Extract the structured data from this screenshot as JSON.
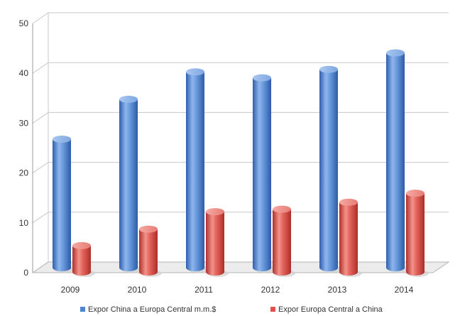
{
  "chart_data": {
    "type": "bar",
    "categories": [
      "2009",
      "2010",
      "2011",
      "2012",
      "2013",
      "2014"
    ],
    "series": [
      {
        "name": "Expor China a Europa Central m.m.$",
        "values": [
          26.5,
          34.5,
          40,
          38.8,
          40.5,
          43.8
        ],
        "color": "#4f86d4"
      },
      {
        "name": "Expor Europa Central a China",
        "values": [
          6,
          9.3,
          12.8,
          13.3,
          14.7,
          16.5
        ],
        "color": "#e0544c"
      }
    ],
    "ylim": [
      0,
      50
    ],
    "yticks": [
      "0",
      "10",
      "20",
      "30",
      "40",
      "50"
    ],
    "grid": true,
    "legend": "bottom",
    "style": "3d-cylinder"
  }
}
